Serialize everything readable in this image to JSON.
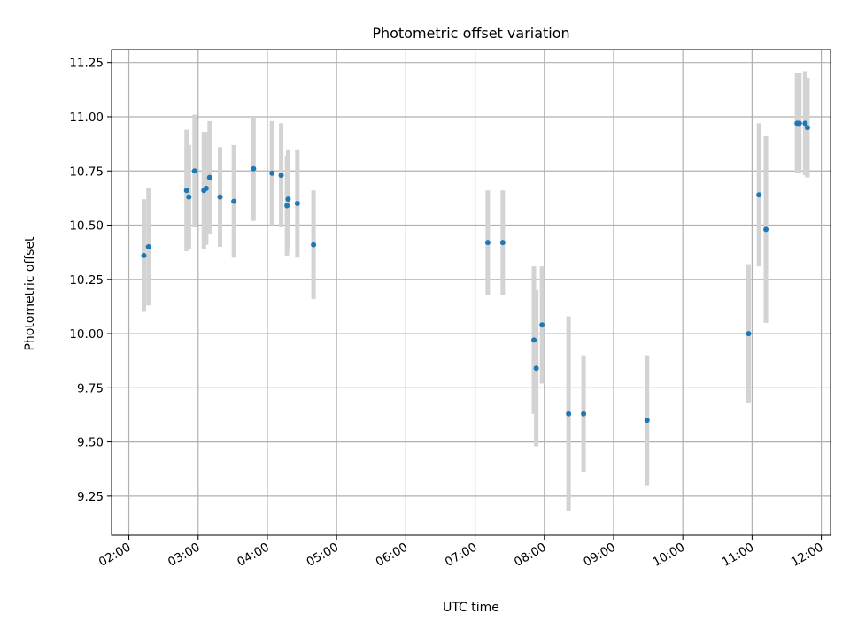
{
  "chart_data": {
    "type": "scatter",
    "title": "Photometric offset variation",
    "xlabel": "UTC time",
    "ylabel": "Photometric offset",
    "x_ticks": [
      "02:00",
      "03:00",
      "04:00",
      "05:00",
      "06:00",
      "07:00",
      "08:00",
      "09:00",
      "10:00",
      "11:00",
      "12:00"
    ],
    "y_ticks": [
      "9.25",
      "9.50",
      "9.75",
      "10.00",
      "10.25",
      "10.50",
      "10.75",
      "11.00",
      "11.25"
    ],
    "xlim": [
      "01:45",
      "12:08"
    ],
    "ylim": [
      9.07,
      11.31
    ],
    "grid": true,
    "colors": {
      "point": "#1f77b4",
      "errorbar": "#d3d3d3",
      "grid": "#b0b0b0"
    },
    "series": [
      {
        "points": [
          {
            "x": "02:13",
            "y": 10.36,
            "err": 0.26
          },
          {
            "x": "02:17",
            "y": 10.4,
            "err": 0.27
          },
          {
            "x": "02:50",
            "y": 10.66,
            "err": 0.28
          },
          {
            "x": "02:52",
            "y": 10.63,
            "err": 0.24
          },
          {
            "x": "02:57",
            "y": 10.75,
            "err": 0.26
          },
          {
            "x": "03:05",
            "y": 10.66,
            "err": 0.27
          },
          {
            "x": "03:07",
            "y": 10.67,
            "err": 0.26
          },
          {
            "x": "03:10",
            "y": 10.72,
            "err": 0.26
          },
          {
            "x": "03:19",
            "y": 10.63,
            "err": 0.23
          },
          {
            "x": "03:31",
            "y": 10.61,
            "err": 0.26
          },
          {
            "x": "03:48",
            "y": 10.76,
            "err": 0.24
          },
          {
            "x": "04:04",
            "y": 10.74,
            "err": 0.24
          },
          {
            "x": "04:12",
            "y": 10.73,
            "err": 0.24
          },
          {
            "x": "04:17",
            "y": 10.59,
            "err": 0.23
          },
          {
            "x": "04:18",
            "y": 10.62,
            "err": 0.23
          },
          {
            "x": "04:26",
            "y": 10.6,
            "err": 0.25
          },
          {
            "x": "04:40",
            "y": 10.41,
            "err": 0.25
          },
          {
            "x": "07:11",
            "y": 10.42,
            "err": 0.24
          },
          {
            "x": "07:24",
            "y": 10.42,
            "err": 0.24
          },
          {
            "x": "07:51",
            "y": 9.97,
            "err": 0.34
          },
          {
            "x": "07:53",
            "y": 9.84,
            "err": 0.36
          },
          {
            "x": "07:58",
            "y": 10.04,
            "err": 0.27
          },
          {
            "x": "08:21",
            "y": 9.63,
            "err": 0.45
          },
          {
            "x": "08:34",
            "y": 9.63,
            "err": 0.27
          },
          {
            "x": "09:29",
            "y": 9.6,
            "err": 0.3
          },
          {
            "x": "10:57",
            "y": 10.0,
            "err": 0.32
          },
          {
            "x": "11:06",
            "y": 10.64,
            "err": 0.33
          },
          {
            "x": "11:12",
            "y": 10.48,
            "err": 0.43
          },
          {
            "x": "11:39",
            "y": 10.97,
            "err": 0.23
          },
          {
            "x": "11:41",
            "y": 10.97,
            "err": 0.23
          },
          {
            "x": "11:46",
            "y": 10.97,
            "err": 0.24
          },
          {
            "x": "11:48",
            "y": 10.95,
            "err": 0.23
          }
        ]
      }
    ]
  }
}
